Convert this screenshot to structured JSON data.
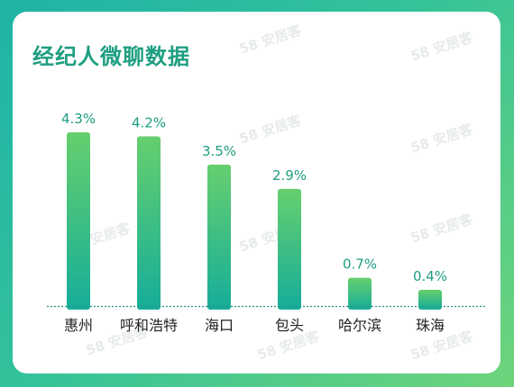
{
  "title": "经纪人微聊数据",
  "watermark": "58 安居客",
  "colors": {
    "bar_top": "#66cf6e",
    "bar_bottom": "#16ad9a",
    "label": "#1e9e82",
    "axis": "#2a8f86",
    "text": "#222222"
  },
  "chart_data": {
    "type": "bar",
    "categories": [
      "惠州",
      "呼和浩特",
      "海口",
      "包头",
      "哈尔滨",
      "珠海"
    ],
    "values": [
      4.3,
      4.2,
      3.5,
      2.9,
      0.7,
      0.4
    ],
    "value_labels": [
      "4.3%",
      "4.2%",
      "3.5%",
      "2.9%",
      "0.7%",
      "0.4%"
    ],
    "title": "经纪人微聊数据",
    "xlabel": "",
    "ylabel": "",
    "ylim": [
      0,
      4.3
    ],
    "grid": false,
    "legend": "none"
  }
}
